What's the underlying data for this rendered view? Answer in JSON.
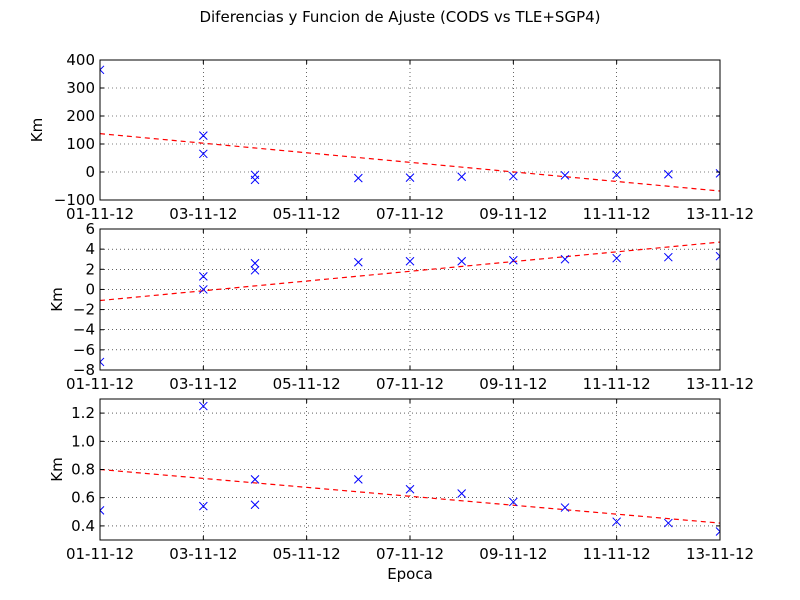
{
  "figure": {
    "title": "Diferencias y Funcion de Ajuste (CODS vs TLE+SGP4)",
    "xlabel": "Epoca"
  },
  "chart_data": [
    {
      "type": "scatter",
      "ylabel": "Km",
      "xlim": [
        0,
        12
      ],
      "ylim": [
        -100,
        400
      ],
      "xticks": [
        0,
        2,
        4,
        6,
        8,
        10,
        12
      ],
      "xtick_labels": [
        "01-11-12",
        "03-11-12",
        "05-11-12",
        "07-11-12",
        "09-11-12",
        "11-11-12",
        "13-11-12"
      ],
      "yticks": [
        -100,
        0,
        100,
        200,
        300,
        400
      ],
      "ytick_labels": [
        "−100",
        "0",
        "100",
        "200",
        "300",
        "400"
      ],
      "grid": true,
      "series": [
        {
          "marker": "x",
          "color": "#0000ff",
          "points": [
            [
              0,
              365
            ],
            [
              2,
              130
            ],
            [
              2,
              65
            ],
            [
              3,
              -10
            ],
            [
              3,
              -28
            ],
            [
              5,
              -22
            ],
            [
              6,
              -20
            ],
            [
              7,
              -17
            ],
            [
              8,
              -15
            ],
            [
              9,
              -12
            ],
            [
              10,
              -10
            ],
            [
              11,
              -8
            ],
            [
              12,
              -5
            ]
          ]
        }
      ],
      "fit_line": {
        "color": "#ff0000",
        "style": "dashed",
        "x": [
          0,
          12
        ],
        "y": [
          137,
          -68
        ]
      }
    },
    {
      "type": "scatter",
      "ylabel": "Km",
      "xlim": [
        0,
        12
      ],
      "ylim": [
        -8,
        6
      ],
      "xticks": [
        0,
        2,
        4,
        6,
        8,
        10,
        12
      ],
      "xtick_labels": [
        "01-11-12",
        "03-11-12",
        "05-11-12",
        "07-11-12",
        "09-11-12",
        "11-11-12",
        "13-11-12"
      ],
      "yticks": [
        -8,
        -6,
        -4,
        -2,
        0,
        2,
        4,
        6
      ],
      "ytick_labels": [
        "−8",
        "−6",
        "−4",
        "−2",
        "0",
        "2",
        "4",
        "6"
      ],
      "grid": true,
      "series": [
        {
          "marker": "x",
          "color": "#0000ff",
          "points": [
            [
              0,
              -7.2
            ],
            [
              2,
              1.3
            ],
            [
              2,
              0.0
            ],
            [
              3,
              2.6
            ],
            [
              3,
              1.9
            ],
            [
              5,
              2.7
            ],
            [
              6,
              2.8
            ],
            [
              7,
              2.8
            ],
            [
              8,
              2.9
            ],
            [
              9,
              3.0
            ],
            [
              10,
              3.1
            ],
            [
              11,
              3.2
            ],
            [
              12,
              3.3
            ]
          ]
        }
      ],
      "fit_line": {
        "color": "#ff0000",
        "style": "dashed",
        "x": [
          0,
          12
        ],
        "y": [
          -1.1,
          4.7
        ]
      }
    },
    {
      "type": "scatter",
      "ylabel": "Km",
      "xlim": [
        0,
        12
      ],
      "ylim": [
        0.3,
        1.3
      ],
      "xticks": [
        0,
        2,
        4,
        6,
        8,
        10,
        12
      ],
      "xtick_labels": [
        "01-11-12",
        "03-11-12",
        "05-11-12",
        "07-11-12",
        "09-11-12",
        "11-11-12",
        "13-11-12"
      ],
      "yticks": [
        0.4,
        0.6,
        0.8,
        1.0,
        1.2
      ],
      "ytick_labels": [
        "0.4",
        "0.6",
        "0.8",
        "1.0",
        "1.2"
      ],
      "grid": true,
      "series": [
        {
          "marker": "x",
          "color": "#0000ff",
          "points": [
            [
              0,
              0.51
            ],
            [
              2,
              1.25
            ],
            [
              2,
              0.54
            ],
            [
              3,
              0.73
            ],
            [
              3,
              0.55
            ],
            [
              5,
              0.73
            ],
            [
              6,
              0.66
            ],
            [
              7,
              0.63
            ],
            [
              8,
              0.57
            ],
            [
              9,
              0.53
            ],
            [
              10,
              0.43
            ],
            [
              11,
              0.42
            ],
            [
              12,
              0.36
            ]
          ]
        }
      ],
      "fit_line": {
        "color": "#ff0000",
        "style": "dashed",
        "x": [
          0,
          12
        ],
        "y": [
          0.8,
          0.42
        ]
      }
    }
  ]
}
